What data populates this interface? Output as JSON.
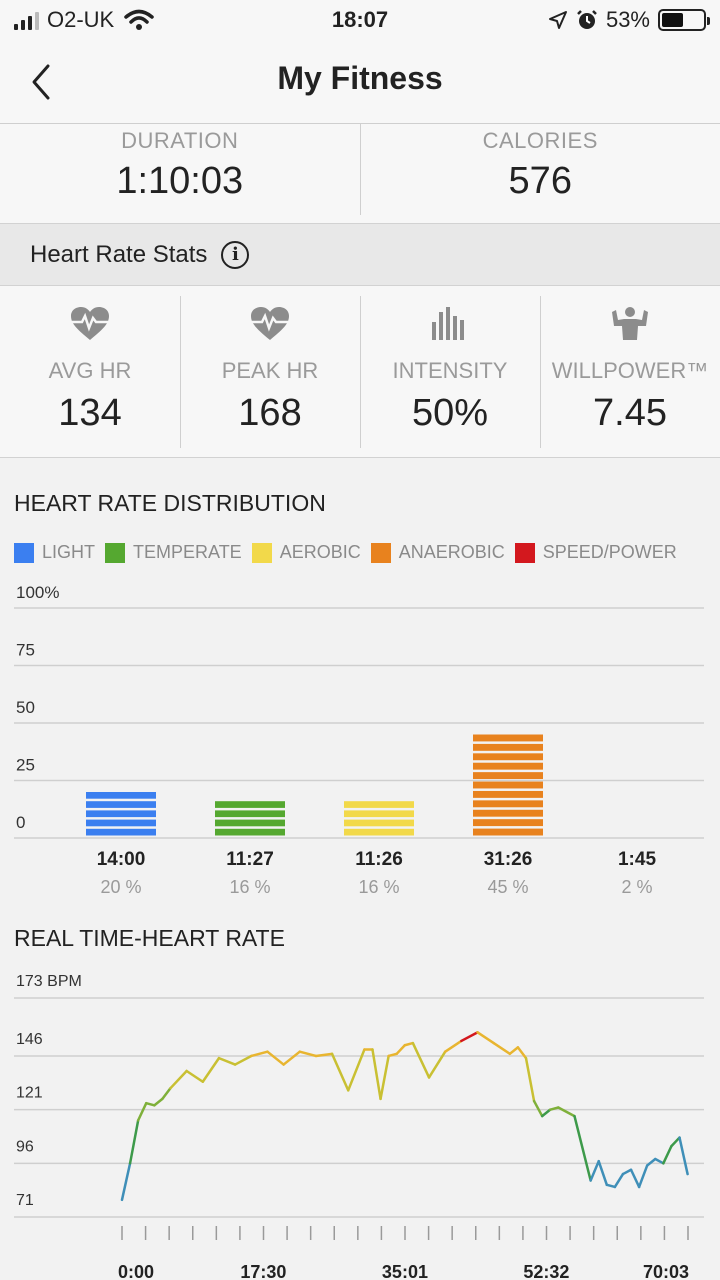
{
  "status_bar": {
    "carrier": "O2-UK",
    "time": "18:07",
    "battery": "53%",
    "battery_level": 0.53
  },
  "nav": {
    "title": "My Fitness"
  },
  "summary": {
    "duration_label": "DURATION",
    "duration_value": "1:10:03",
    "calories_label": "CALORIES",
    "calories_value": "576"
  },
  "heart_rate_section": {
    "title": "Heart Rate Stats"
  },
  "hr_stats": [
    {
      "icon": "heart-rate-icon",
      "label": "AVG HR",
      "value": "134"
    },
    {
      "icon": "heart-rate-icon",
      "label": "PEAK HR",
      "value": "168"
    },
    {
      "icon": "intensity-bars-icon",
      "label": "INTENSITY",
      "value": "50%"
    },
    {
      "icon": "muscle-icon",
      "label": "WILLPOWER™",
      "value": "7.45"
    }
  ],
  "colors": {
    "light": "#3b7ff0",
    "temperate": "#55a830",
    "aerobic": "#f2d94a",
    "anaerobic": "#e8821e",
    "speed_power": "#d3181e"
  },
  "chart_data": [
    {
      "type": "bar",
      "title": "HEART RATE DISTRIBUTION",
      "legend": [
        "LIGHT",
        "TEMPERATE",
        "AEROBIC",
        "ANAEROBIC",
        "SPEED/POWER"
      ],
      "legend_placement": "top",
      "categories": [
        "14:00",
        "11:27",
        "11:26",
        "31:26",
        "1:45"
      ],
      "percent_labels": [
        "20 %",
        "16 %",
        "16 %",
        "45 %",
        "2 %"
      ],
      "values": [
        20,
        16,
        16,
        45,
        2
      ],
      "yticks": [
        "100%",
        "75",
        "50",
        "25",
        "0"
      ],
      "ylim": [
        0,
        100
      ],
      "grid": true
    },
    {
      "type": "line",
      "title": "REAL TIME-HEART RATE",
      "yticks": [
        "173 BPM",
        "146",
        "121",
        "96",
        "71"
      ],
      "ylim": [
        71,
        173
      ],
      "xticks": [
        "0:00",
        "17:30",
        "35:01",
        "52:32",
        "70:03"
      ],
      "x_minutes": [
        0,
        1,
        2,
        3,
        4,
        5,
        6,
        8,
        10,
        12,
        14,
        16,
        18,
        20,
        22,
        24,
        26,
        28,
        30,
        31,
        32,
        33,
        34,
        35,
        36,
        38,
        40,
        42,
        44,
        46,
        48,
        49,
        50,
        51,
        52,
        53,
        54,
        56,
        58,
        59,
        60,
        61,
        62,
        63,
        64,
        65,
        66,
        67,
        68,
        69,
        70
      ],
      "y_bpm": [
        79,
        96,
        116,
        124,
        123,
        126,
        131,
        139,
        134,
        145,
        142,
        146,
        148,
        142,
        148,
        146,
        147,
        130,
        149,
        149,
        126,
        146,
        147,
        151,
        152,
        136,
        148,
        153,
        157,
        152,
        147,
        150,
        145,
        125,
        118,
        121,
        122,
        118,
        88,
        97,
        86,
        85,
        91,
        93,
        85,
        95,
        98,
        96,
        104,
        108,
        91
      ],
      "grid": true
    }
  ]
}
